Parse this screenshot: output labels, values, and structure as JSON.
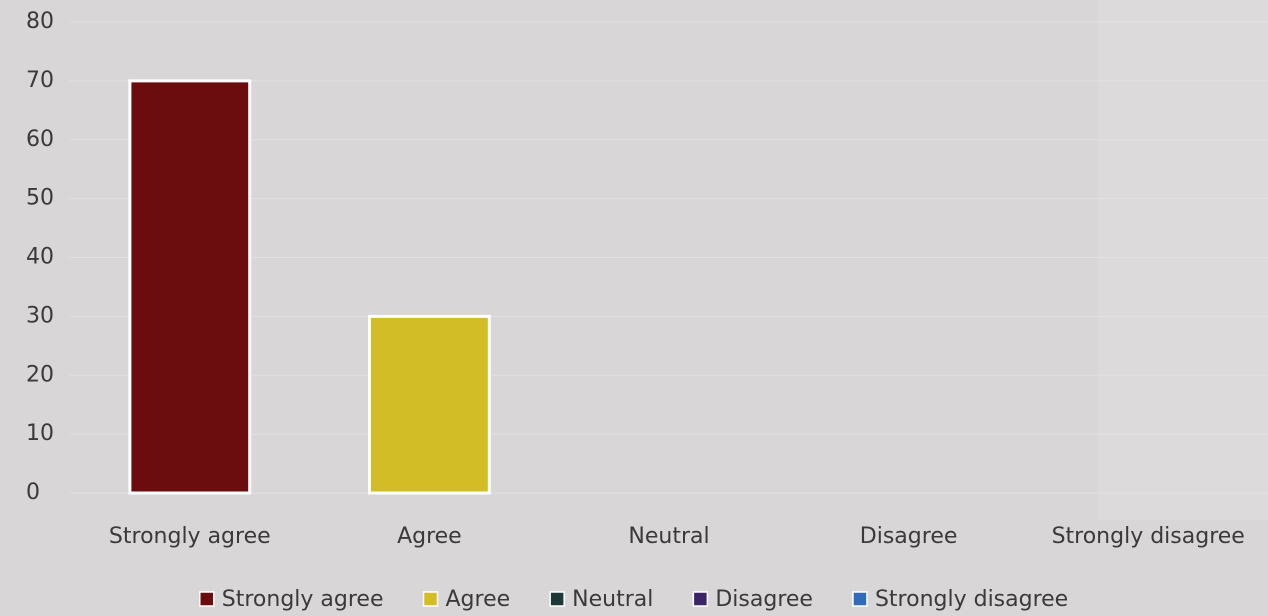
{
  "chart_data": {
    "type": "bar",
    "categories": [
      "Strongly agree",
      "Agree",
      "Neutral",
      "Disagree",
      "Strongly disagree"
    ],
    "values": [
      70,
      30,
      0,
      0,
      0
    ],
    "colors": [
      "#6b0d0e",
      "#d3bd26",
      "#1e3838",
      "#3c2468",
      "#2f6bba"
    ],
    "ylim": [
      0,
      80
    ],
    "yticks": [
      0,
      10,
      20,
      30,
      40,
      50,
      60,
      70,
      80
    ],
    "grid": true,
    "legend": "bottom"
  }
}
